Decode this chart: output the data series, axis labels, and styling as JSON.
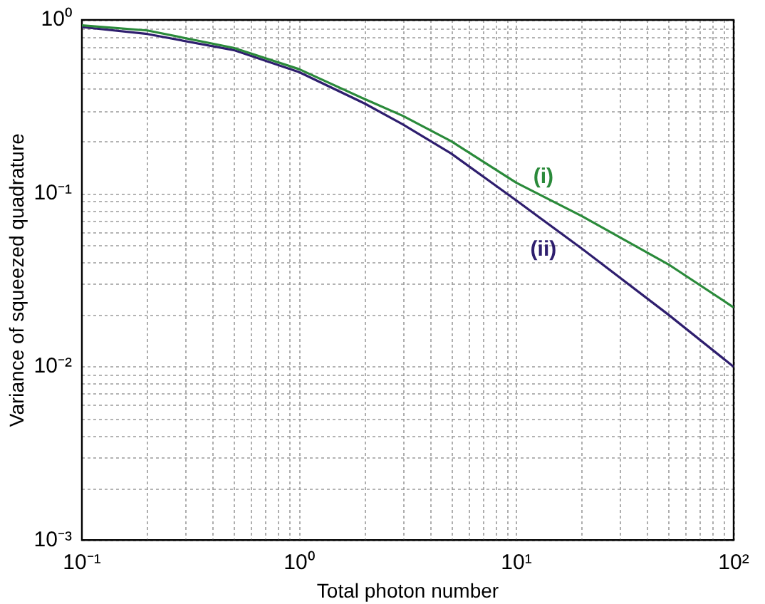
{
  "chart_data": {
    "type": "line",
    "xlabel": "Total photon number",
    "ylabel": "Variance of squeezed quadrature",
    "log": "xy",
    "grid": true,
    "line_style": "solid",
    "marker": "none",
    "x": [
      0.1,
      0.2,
      0.5,
      1,
      2,
      3,
      5,
      10,
      20,
      50,
      100
    ],
    "series": [
      {
        "name": "(i)",
        "color": "#2a8a3a",
        "values": [
          0.93,
          0.87,
          0.69,
          0.52,
          0.35,
          0.28,
          0.2,
          0.115,
          0.074,
          0.039,
          0.022
        ]
      },
      {
        "name": "(ii)",
        "color": "#2e1e6e",
        "values": [
          0.91,
          0.83,
          0.67,
          0.5,
          0.33,
          0.25,
          0.17,
          0.091,
          0.048,
          0.02,
          0.01
        ]
      }
    ],
    "xlim": [
      0.1,
      100
    ],
    "ylim": [
      0.001,
      1
    ],
    "xticks": [
      {
        "value": 0.1,
        "label": "10⁻¹"
      },
      {
        "value": 0.2,
        "label": null
      },
      {
        "value": 0.3,
        "label": null
      },
      {
        "value": 0.4,
        "label": null
      },
      {
        "value": 0.5,
        "label": null
      },
      {
        "value": 0.6,
        "label": null
      },
      {
        "value": 0.7,
        "label": null
      },
      {
        "value": 0.8,
        "label": null
      },
      {
        "value": 0.9,
        "label": null
      },
      {
        "value": 1,
        "label": "10⁰"
      },
      {
        "value": 2,
        "label": null
      },
      {
        "value": 3,
        "label": null
      },
      {
        "value": 4,
        "label": null
      },
      {
        "value": 5,
        "label": null
      },
      {
        "value": 6,
        "label": null
      },
      {
        "value": 7,
        "label": null
      },
      {
        "value": 8,
        "label": null
      },
      {
        "value": 9,
        "label": null
      },
      {
        "value": 10,
        "label": "10¹"
      },
      {
        "value": 20,
        "label": null
      },
      {
        "value": 30,
        "label": null
      },
      {
        "value": 40,
        "label": null
      },
      {
        "value": 50,
        "label": null
      },
      {
        "value": 60,
        "label": null
      },
      {
        "value": 70,
        "label": null
      },
      {
        "value": 80,
        "label": null
      },
      {
        "value": 90,
        "label": null
      },
      {
        "value": 100,
        "label": "10²"
      }
    ],
    "yticks": [
      {
        "value": 0.001,
        "label": "10⁻³"
      },
      {
        "value": 0.002,
        "label": null
      },
      {
        "value": 0.003,
        "label": null
      },
      {
        "value": 0.004,
        "label": null
      },
      {
        "value": 0.005,
        "label": null
      },
      {
        "value": 0.006,
        "label": null
      },
      {
        "value": 0.007,
        "label": null
      },
      {
        "value": 0.008,
        "label": null
      },
      {
        "value": 0.009,
        "label": null
      },
      {
        "value": 0.01,
        "label": "10⁻²"
      },
      {
        "value": 0.02,
        "label": null
      },
      {
        "value": 0.03,
        "label": null
      },
      {
        "value": 0.04,
        "label": null
      },
      {
        "value": 0.05,
        "label": null
      },
      {
        "value": 0.06,
        "label": null
      },
      {
        "value": 0.07,
        "label": null
      },
      {
        "value": 0.08,
        "label": null
      },
      {
        "value": 0.09,
        "label": null
      },
      {
        "value": 0.1,
        "label": "10⁻¹"
      },
      {
        "value": 0.2,
        "label": null
      },
      {
        "value": 0.3,
        "label": null
      },
      {
        "value": 0.4,
        "label": null
      },
      {
        "value": 0.5,
        "label": null
      },
      {
        "value": 0.6,
        "label": null
      },
      {
        "value": 0.7,
        "label": null
      },
      {
        "value": 0.8,
        "label": null
      },
      {
        "value": 0.9,
        "label": null
      },
      {
        "value": 1,
        "label": "10⁰"
      }
    ]
  }
}
